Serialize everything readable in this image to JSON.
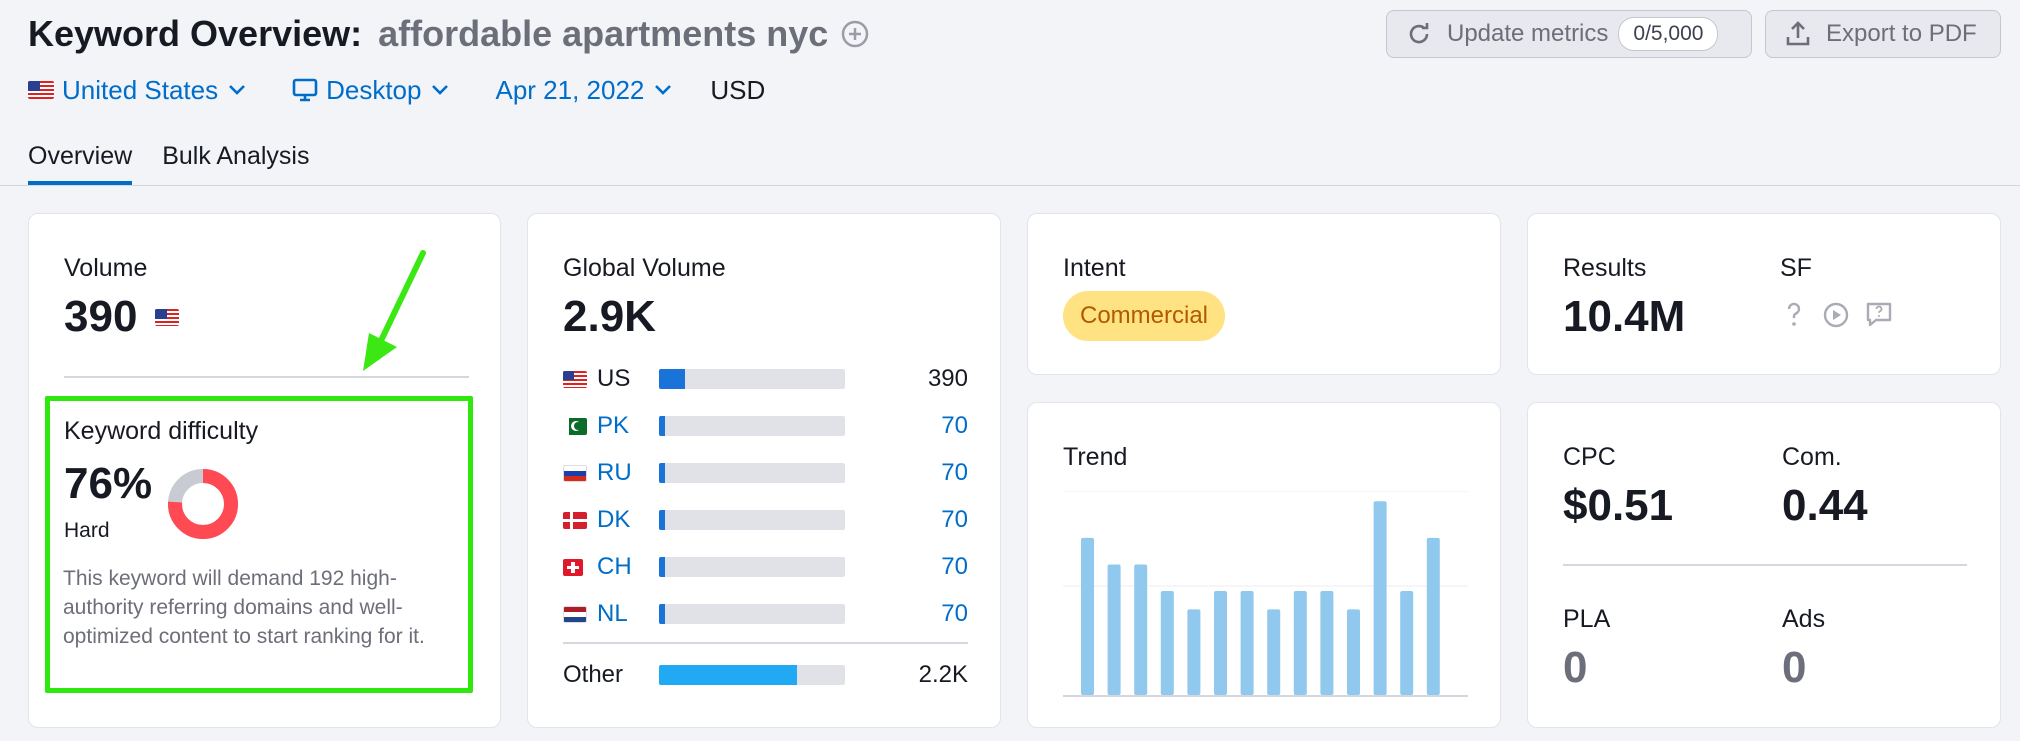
{
  "header": {
    "title_prefix": "Keyword Overview:",
    "keyword": "affordable apartments nyc",
    "update_label": "Update metrics",
    "update_counter": "0/5,000",
    "export_label": "Export to PDF"
  },
  "filters": {
    "country": "United States",
    "device": "Desktop",
    "date": "Apr 21, 2022",
    "currency": "USD"
  },
  "tabs": [
    {
      "label": "Overview",
      "active": true
    },
    {
      "label": "Bulk Analysis",
      "active": false
    }
  ],
  "volume": {
    "label": "Volume",
    "value": "390",
    "kd_label": "Keyword difficulty",
    "kd_value": "76%",
    "kd_percent": 76,
    "kd_level": "Hard",
    "kd_description": "This keyword will demand 192 high-authority referring domains and well-optimized content to start ranking for it."
  },
  "global": {
    "label": "Global Volume",
    "value": "2.9K",
    "rows": [
      {
        "code": "US",
        "value": "390",
        "share": 0.14,
        "link": false
      },
      {
        "code": "PK",
        "value": "70",
        "share": 0.025,
        "link": true
      },
      {
        "code": "RU",
        "value": "70",
        "share": 0.025,
        "link": true
      },
      {
        "code": "DK",
        "value": "70",
        "share": 0.025,
        "link": true
      },
      {
        "code": "CH",
        "value": "70",
        "share": 0.025,
        "link": true
      },
      {
        "code": "NL",
        "value": "70",
        "share": 0.025,
        "link": true
      }
    ],
    "other_label": "Other",
    "other_value": "2.2K",
    "other_share": 0.74
  },
  "intent": {
    "label": "Intent",
    "badge": "Commercial"
  },
  "trend": {
    "label": "Trend",
    "values": [
      0.77,
      0.64,
      0.64,
      0.51,
      0.42,
      0.51,
      0.51,
      0.42,
      0.51,
      0.51,
      0.42,
      0.95,
      0.51,
      0.77
    ]
  },
  "results": {
    "label": "Results",
    "value": "10.4M",
    "sf_label": "SF"
  },
  "cpc": {
    "cpc_label": "CPC",
    "cpc_value": "$0.51",
    "com_label": "Com.",
    "com_value": "0.44",
    "pla_label": "PLA",
    "pla_value": "0",
    "ads_label": "Ads",
    "ads_value": "0"
  },
  "colors": {
    "accent": "#006dca",
    "kd_hard": "#ff4953",
    "bar_primary": "#1a73d9",
    "bar_light": "#21aaf3",
    "trend_bar": "#90c8ee",
    "highlight": "#2ee80e",
    "annotation_arrow": "#3be814"
  }
}
